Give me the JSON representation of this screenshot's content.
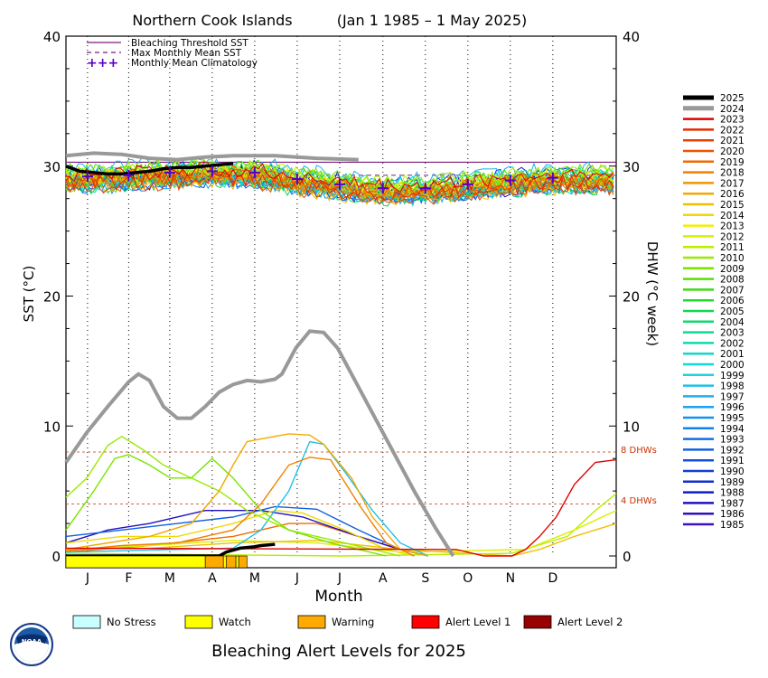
{
  "chart_data": {
    "type": "line",
    "title": "Northern Cook Islands",
    "date_range": "(Jan 1 1985 – 1 May 2025)",
    "xlabel": "Month",
    "ylabel_left": "SST (°C)",
    "ylabel_right": "DHW (°C week)",
    "ylim": [
      0,
      40
    ],
    "yticks": [
      "0",
      "10",
      "20",
      "30",
      "40"
    ],
    "months": [
      "J",
      "F",
      "M",
      "A",
      "M",
      "J",
      "J",
      "A",
      "S",
      "O",
      "N",
      "D"
    ],
    "thresholds": {
      "bleaching_threshold_sst": 30.3,
      "max_monthly_mean_sst": 29.3,
      "dhw_8_label": "8 DHWs",
      "dhw_4_label": "4 DHWs",
      "dhw_8": 8,
      "dhw_4": 4
    },
    "legend_top": [
      {
        "name": "Bleaching Threshold SST",
        "style": "solid",
        "color": "#7a1a7a"
      },
      {
        "name": "Max Monthly Mean SST",
        "style": "dashed",
        "color": "#7a1a7a"
      },
      {
        "name": "Monthly Mean Climatology",
        "style": "plus",
        "color": "#5500cc"
      }
    ],
    "climatology": [
      29.2,
      29.3,
      29.5,
      29.6,
      29.5,
      29.0,
      28.6,
      28.3,
      28.3,
      28.6,
      28.9,
      29.1
    ],
    "years": [
      "2025",
      "2024",
      "2023",
      "2022",
      "2021",
      "2020",
      "2019",
      "2018",
      "2017",
      "2016",
      "2015",
      "2014",
      "2013",
      "2012",
      "2011",
      "2010",
      "2009",
      "2008",
      "2007",
      "2006",
      "2005",
      "2004",
      "2003",
      "2002",
      "2001",
      "2000",
      "1999",
      "1998",
      "1997",
      "1996",
      "1995",
      "1994",
      "1993",
      "1992",
      "1991",
      "1990",
      "1989",
      "1988",
      "1987",
      "1986",
      "1985"
    ],
    "year_colors": [
      "#000000",
      "#999999",
      "#e00000",
      "#e52a00",
      "#e84000",
      "#ec5500",
      "#f06a00",
      "#f08000",
      "#f09500",
      "#f0aa00",
      "#f0c000",
      "#f0d800",
      "#f0f000",
      "#d8f000",
      "#b8ee00",
      "#98ea00",
      "#78e400",
      "#58e000",
      "#38dc10",
      "#20da30",
      "#10d850",
      "#10d870",
      "#10d890",
      "#10d8b0",
      "#10d8c8",
      "#10d8d8",
      "#20d0e0",
      "#20c0e8",
      "#20b0ec",
      "#20a0f0",
      "#1090f0",
      "#1080f0",
      "#1070e8",
      "#1060e0",
      "#1050d8",
      "#1040d0",
      "#1030c8",
      "#1020c0",
      "#2010c0",
      "#3010c0",
      "#4010c0"
    ],
    "sst_2024": [
      [
        0,
        30.8
      ],
      [
        20,
        31.0
      ],
      [
        40,
        30.9
      ],
      [
        60,
        30.6
      ],
      [
        80,
        30.5
      ],
      [
        100,
        30.7
      ],
      [
        120,
        30.8
      ],
      [
        150,
        30.8
      ],
      [
        180,
        30.6
      ],
      [
        210,
        30.5
      ]
    ],
    "sst_2025": [
      [
        0,
        30.0
      ],
      [
        10,
        29.6
      ],
      [
        20,
        29.5
      ],
      [
        30,
        29.4
      ],
      [
        40,
        29.4
      ],
      [
        50,
        29.5
      ],
      [
        60,
        29.6
      ],
      [
        70,
        29.8
      ],
      [
        80,
        29.9
      ],
      [
        90,
        29.9
      ],
      [
        100,
        30.0
      ],
      [
        110,
        30.1
      ],
      [
        120,
        30.2
      ]
    ],
    "dhw_series": [
      {
        "name": "2024",
        "points": [
          [
            0,
            7.2
          ],
          [
            15,
            9.5
          ],
          [
            30,
            11.5
          ],
          [
            45,
            13.4
          ],
          [
            52,
            14.0
          ],
          [
            60,
            13.5
          ],
          [
            70,
            11.5
          ],
          [
            80,
            10.6
          ],
          [
            90,
            10.6
          ],
          [
            100,
            11.5
          ],
          [
            110,
            12.6
          ],
          [
            120,
            13.2
          ],
          [
            130,
            13.5
          ],
          [
            140,
            13.4
          ],
          [
            150,
            13.6
          ],
          [
            155,
            14.0
          ],
          [
            165,
            16.0
          ],
          [
            175,
            17.3
          ],
          [
            185,
            17.2
          ],
          [
            195,
            16.0
          ],
          [
            205,
            14.0
          ],
          [
            220,
            11.0
          ],
          [
            235,
            8.0
          ],
          [
            250,
            5.0
          ],
          [
            265,
            2.2
          ],
          [
            278,
            0
          ]
        ]
      },
      {
        "name": "2025",
        "points": [
          [
            0,
            0
          ],
          [
            110,
            0
          ],
          [
            115,
            0.3
          ],
          [
            125,
            0.6
          ],
          [
            135,
            0.7
          ],
          [
            140,
            0.8
          ],
          [
            150,
            0.9
          ]
        ]
      },
      {
        "name": "2023",
        "points": [
          [
            0,
            0.6
          ],
          [
            280,
            0.5
          ],
          [
            300,
            0
          ],
          [
            320,
            0
          ],
          [
            330,
            0.5
          ],
          [
            340,
            1.5
          ],
          [
            352,
            3
          ],
          [
            365,
            5.5
          ],
          [
            380,
            7.2
          ],
          [
            395,
            7.4
          ]
        ]
      },
      {
        "name": "2016",
        "points": [
          [
            0,
            0.5
          ],
          [
            60,
            1.5
          ],
          [
            90,
            2.5
          ],
          [
            110,
            5
          ],
          [
            120,
            7
          ],
          [
            130,
            8.8
          ],
          [
            140,
            9.0
          ],
          [
            160,
            9.4
          ],
          [
            175,
            9.3
          ],
          [
            185,
            8.6
          ],
          [
            205,
            6.0
          ],
          [
            220,
            3.0
          ],
          [
            240,
            0.5
          ],
          [
            260,
            0
          ]
        ]
      },
      {
        "name": "2018",
        "points": [
          [
            0,
            0.4
          ],
          [
            40,
            0.8
          ],
          [
            80,
            1.0
          ],
          [
            120,
            2.0
          ],
          [
            140,
            4.0
          ],
          [
            160,
            7.0
          ],
          [
            175,
            7.6
          ],
          [
            190,
            7.4
          ],
          [
            210,
            4.0
          ],
          [
            230,
            1.0
          ],
          [
            250,
            0
          ]
        ]
      },
      {
        "name": "2009",
        "points": [
          [
            0,
            2.0
          ],
          [
            20,
            5.0
          ],
          [
            35,
            7.5
          ],
          [
            45,
            7.8
          ],
          [
            60,
            7.0
          ],
          [
            75,
            6.0
          ],
          [
            90,
            6.0
          ],
          [
            105,
            7.5
          ],
          [
            120,
            6.0
          ],
          [
            140,
            3.5
          ],
          [
            160,
            2.0
          ],
          [
            190,
            1.0
          ],
          [
            230,
            0
          ]
        ]
      },
      {
        "name": "2010",
        "points": [
          [
            0,
            4.5
          ],
          [
            15,
            6.0
          ],
          [
            30,
            8.5
          ],
          [
            40,
            9.2
          ],
          [
            55,
            8.2
          ],
          [
            70,
            7.0
          ],
          [
            90,
            6.0
          ],
          [
            110,
            5.0
          ],
          [
            130,
            3.5
          ],
          [
            160,
            2.0
          ],
          [
            200,
            1.0
          ],
          [
            240,
            0
          ]
        ]
      },
      {
        "name": "1998",
        "points": [
          [
            0,
            0.3
          ],
          [
            120,
            0.6
          ],
          [
            140,
            2.0
          ],
          [
            160,
            5.0
          ],
          [
            175,
            8.8
          ],
          [
            185,
            8.6
          ],
          [
            200,
            6.5
          ],
          [
            220,
            3.5
          ],
          [
            240,
            1.0
          ],
          [
            260,
            0
          ]
        ]
      },
      {
        "name": "1992",
        "points": [
          [
            0,
            1.5
          ],
          [
            40,
            2.0
          ],
          [
            80,
            2.5
          ],
          [
            120,
            3.0
          ],
          [
            150,
            3.8
          ],
          [
            180,
            3.6
          ],
          [
            210,
            2.0
          ],
          [
            240,
            0.5
          ],
          [
            260,
            0
          ]
        ]
      },
      {
        "name": "2015",
        "points": [
          [
            0,
            0.5
          ],
          [
            60,
            0.6
          ],
          [
            120,
            1.0
          ],
          [
            180,
            1.2
          ],
          [
            240,
            0.5
          ],
          [
            320,
            0
          ],
          [
            340,
            0.5
          ],
          [
            365,
            1.5
          ],
          [
            395,
            2.5
          ]
        ]
      },
      {
        "name": "2012",
        "points": [
          [
            0,
            0.5
          ],
          [
            60,
            0.8
          ],
          [
            120,
            1.2
          ],
          [
            180,
            1.0
          ],
          [
            240,
            0.3
          ],
          [
            330,
            0.5
          ],
          [
            365,
            2.0
          ],
          [
            385,
            3.0
          ],
          [
            395,
            3.5
          ]
        ]
      },
      {
        "name": "2014",
        "points": [
          [
            0,
            1.0
          ],
          [
            40,
            1.5
          ],
          [
            80,
            1.5
          ],
          [
            120,
            2.5
          ],
          [
            150,
            3.5
          ],
          [
            170,
            3.3
          ],
          [
            200,
            2.0
          ],
          [
            230,
            0.5
          ],
          [
            250,
            0
          ]
        ]
      },
      {
        "name": "2011",
        "points": [
          [
            0,
            0.2
          ],
          [
            200,
            0
          ],
          [
            320,
            0.2
          ],
          [
            360,
            1.5
          ],
          [
            380,
            3.5
          ],
          [
            395,
            4.8
          ]
        ]
      },
      {
        "name": "1987",
        "points": [
          [
            0,
            1.0
          ],
          [
            30,
            2.0
          ],
          [
            60,
            2.5
          ],
          [
            100,
            3.5
          ],
          [
            140,
            3.5
          ],
          [
            170,
            3.0
          ],
          [
            210,
            1.5
          ],
          [
            240,
            0.5
          ],
          [
            260,
            0
          ]
        ]
      },
      {
        "name": "2019",
        "points": [
          [
            0,
            0.3
          ],
          [
            60,
            0.8
          ],
          [
            120,
            1.5
          ],
          [
            160,
            2.5
          ],
          [
            180,
            2.5
          ],
          [
            210,
            1.5
          ],
          [
            240,
            0.5
          ],
          [
            260,
            0
          ]
        ]
      }
    ]
  },
  "alert_legend": {
    "title": "Bleaching Alert Levels for 2025",
    "items": [
      {
        "label": "No Stress",
        "color": "#c8ffff"
      },
      {
        "label": "Watch",
        "color": "#ffff00"
      },
      {
        "label": "Warning",
        "color": "#ffaa00"
      },
      {
        "label": "Alert Level 1",
        "color": "#ff0000"
      },
      {
        "label": "Alert Level 2",
        "color": "#990000"
      }
    ]
  },
  "alert_bar_2025": [
    {
      "level": "Watch",
      "from_day": 0,
      "to_day": 100
    },
    {
      "level": "Warning",
      "from_day": 100,
      "to_day": 113
    },
    {
      "level": "Watch",
      "from_day": 113,
      "to_day": 115
    },
    {
      "level": "Warning",
      "from_day": 115,
      "to_day": 122
    },
    {
      "level": "Watch",
      "from_day": 122,
      "to_day": 124
    },
    {
      "level": "Warning",
      "from_day": 124,
      "to_day": 130
    }
  ],
  "logo": {
    "text": "NOAA",
    "icon": "noaa-logo-icon"
  }
}
